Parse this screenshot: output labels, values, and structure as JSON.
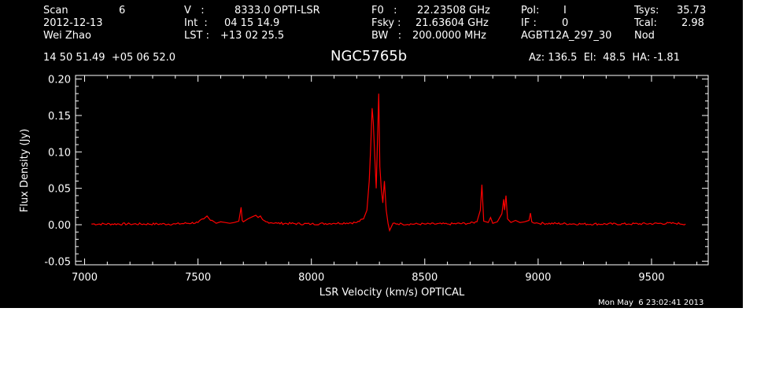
{
  "header": {
    "scan_label": "Scan",
    "scan_value": "6",
    "date": "2012-12-13",
    "observer": "Wei Zhao",
    "v_label": "V   :",
    "v_value": "8333.0 OPTI-LSR",
    "int_label": "Int  :",
    "int_value": "04 15 14.9",
    "lst_label": "LST :",
    "lst_value": "+13 02 25.5",
    "f0_label": "F0   :",
    "f0_value": "22.23508 GHz",
    "fsky_label": "Fsky :",
    "fsky_value": "21.63604 GHz",
    "bw_label": "BW   :",
    "bw_value": "200.0000 MHz",
    "pol_label": "Pol:",
    "pol_value": "I",
    "if_label": "IF :",
    "if_value": "0",
    "project": "AGBT12A_297_30",
    "tsys_label": "Tsys:",
    "tsys_value": "35.73",
    "tcal_label": "Tcal:",
    "tcal_value": "2.98",
    "mode": "Nod",
    "coords": "14 50 51.49  +05 06 52.0",
    "source": "NGC5765b",
    "az_el_ha": "Az: 136.5  El:  48.5  HA: -1.81",
    "timestamp": "Mon May  6 23:02:41 2013"
  },
  "chart_data": {
    "type": "line",
    "xlabel": "LSR Velocity (km/s) OPTICAL",
    "ylabel": "Flux Density (Jy)",
    "xlim": [
      6960,
      9750
    ],
    "ylim": [
      -0.055,
      0.205
    ],
    "x_ticks": [
      7000,
      7500,
      8000,
      8500,
      9000,
      9500
    ],
    "y_ticks": [
      -0.05,
      0.0,
      0.05,
      0.1,
      0.15,
      0.2
    ],
    "x_tick_labels": [
      "7000",
      "7500",
      "8000",
      "8500",
      "9000",
      "9500"
    ],
    "y_tick_labels": [
      "-0.05",
      "0.00",
      "0.05",
      "0.10",
      "0.15",
      "0.20"
    ],
    "series": [
      {
        "color": "#ff0000",
        "x": [
          7030,
          7200,
          7400,
          7500,
          7525,
          7540,
          7555,
          7580,
          7600,
          7620,
          7640,
          7660,
          7680,
          7690,
          7695,
          7700,
          7720,
          7740,
          7755,
          7765,
          7775,
          7785,
          7800,
          7850,
          8000,
          8100,
          8200,
          8230,
          8245,
          8255,
          8262,
          8268,
          8273,
          8280,
          8286,
          8292,
          8297,
          8302,
          8308,
          8315,
          8322,
          8330,
          8338,
          8345,
          8360,
          8400,
          8500,
          8600,
          8700,
          8730,
          8745,
          8752,
          8760,
          8780,
          8790,
          8800,
          8820,
          8840,
          8848,
          8852,
          8858,
          8865,
          8880,
          8900,
          8920,
          8940,
          8960,
          8966,
          8972,
          9000,
          9200,
          9400,
          9600,
          9650
        ],
        "y": [
          0.001,
          0.001,
          0.001,
          0.003,
          0.008,
          0.012,
          0.006,
          0.002,
          0.004,
          0.003,
          0.002,
          0.003,
          0.005,
          0.024,
          0.006,
          0.004,
          0.008,
          0.011,
          0.013,
          0.01,
          0.012,
          0.007,
          0.004,
          0.002,
          0.001,
          0.002,
          0.003,
          0.008,
          0.02,
          0.06,
          0.11,
          0.16,
          0.14,
          0.09,
          0.05,
          0.12,
          0.18,
          0.08,
          0.05,
          0.03,
          0.06,
          0.02,
          0.002,
          -0.008,
          0.002,
          0.001,
          0.001,
          0.001,
          0.002,
          0.004,
          0.02,
          0.055,
          0.005,
          0.003,
          0.01,
          0.002,
          0.004,
          0.015,
          0.035,
          0.02,
          0.04,
          0.008,
          0.003,
          0.006,
          0.003,
          0.004,
          0.006,
          0.016,
          0.004,
          0.002,
          0.001,
          0.001,
          0.002,
          0.001
        ]
      }
    ],
    "grid": false
  }
}
